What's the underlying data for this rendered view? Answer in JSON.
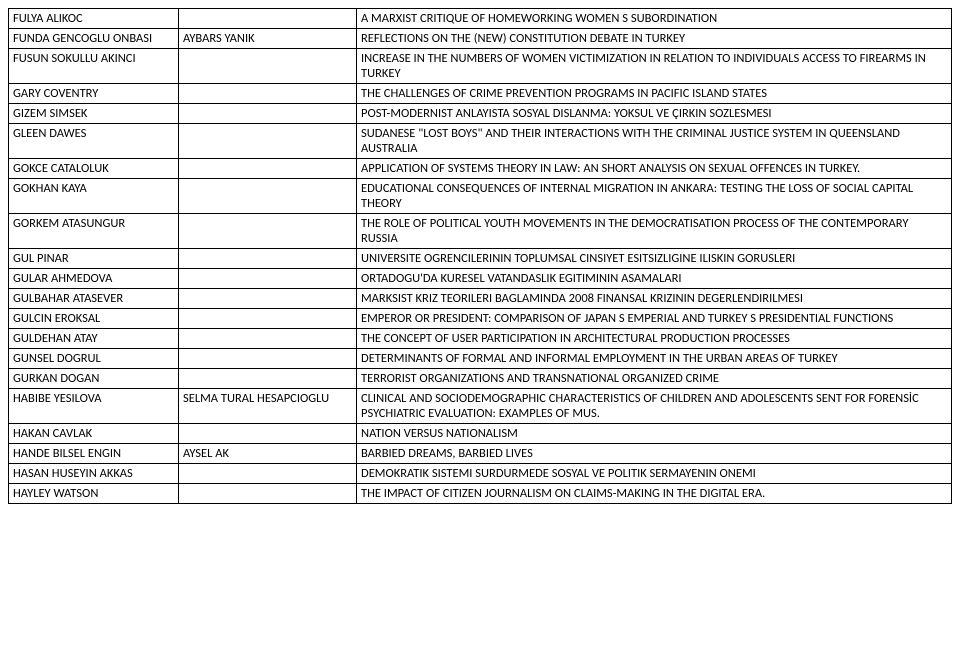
{
  "rows": [
    {
      "c1": "FULYA ALIKOC",
      "c2": "",
      "c3": "A MARXIST CRITIQUE OF HOMEWORKING WOMEN S SUBORDINATION"
    },
    {
      "c1": "FUNDA GENCOGLU ONBASI",
      "c2": "AYBARS YANIK",
      "c3": "REFLECTIONS ON THE (NEW) CONSTITUTION DEBATE IN TURKEY"
    },
    {
      "c1": "FUSUN SOKULLU AKINCI",
      "c2": "",
      "c3": "INCREASE IN THE NUMBERS OF WOMEN VICTIMIZATION IN RELATION TO INDIVIDUALS ACCESS TO FIREARMS IN TURKEY"
    },
    {
      "c1": "GARY COVENTRY",
      "c2": "",
      "c3": "THE CHALLENGES OF CRIME PREVENTION PROGRAMS IN PACIFIC ISLAND STATES"
    },
    {
      "c1": "GIZEM SIMSEK",
      "c2": "",
      "c3": "POST-MODERNIST ANLAYISTA SOSYAL DISLANMA: YOKSUL VE ÇIRKIN SOZLESMESI"
    },
    {
      "c1": "GLEEN DAWES",
      "c2": "",
      "c3": "SUDANESE \"LOST BOYS\" AND THEIR INTERACTIONS WITH THE CRIMINAL JUSTICE SYSTEM IN QUEENSLAND AUSTRALIA"
    },
    {
      "c1": "GOKCE CATALOLUK",
      "c2": "",
      "c3": "APPLICATION OF  SYSTEMS THEORY IN LAW: AN SHORT ANALYSIS ON  SEXUAL OFFENCES IN TURKEY."
    },
    {
      "c1": "GOKHAN KAYA",
      "c2": "",
      "c3": "EDUCATIONAL CONSEQUENCES OF INTERNAL MIGRATION IN ANKARA: TESTING THE LOSS OF SOCIAL CAPITAL THEORY"
    },
    {
      "c1": "GORKEM ATASUNGUR",
      "c2": "",
      "c3": "THE ROLE OF POLITICAL YOUTH MOVEMENTS IN THE DEMOCRATISATION PROCESS OF THE CONTEMPORARY RUSSIA"
    },
    {
      "c1": "GUL PINAR",
      "c2": "",
      "c3": "UNIVERSITE OGRENCILERININ TOPLUMSAL CINSIYET ESITSIZLIGINE ILISKIN GORUSLERI"
    },
    {
      "c1": "GULAR AHMEDOVA",
      "c2": "",
      "c3": "ORTADOGU'DA KURESEL VATANDASLIK EGITIMININ ASAMALARI"
    },
    {
      "c1": "GULBAHAR ATASEVER",
      "c2": "",
      "c3": "MARKSIST KRIZ TEORILERI BAGLAMINDA 2008 FINANSAL KRIZININ DEGERLENDIRILMESI"
    },
    {
      "c1": "GULCIN EROKSAL",
      "c2": "",
      "c3": "EMPEROR OR PRESIDENT: COMPARISON OF JAPAN S EMPERIAL AND TURKEY S PRESIDENTIAL FUNCTIONS"
    },
    {
      "c1": "GULDEHAN ATAY",
      "c2": "",
      "c3": "THE CONCEPT OF USER PARTICIPATION IN ARCHITECTURAL PRODUCTION PROCESSES"
    },
    {
      "c1": "GUNSEL DOGRUL",
      "c2": "",
      "c3": "DETERMINANTS OF FORMAL AND INFORMAL EMPLOYMENT IN THE URBAN AREAS OF TURKEY"
    },
    {
      "c1": "GURKAN DOGAN",
      "c2": "",
      "c3": "TERRORIST ORGANIZATIONS AND TRANSNATIONAL ORGANIZED CRIME"
    },
    {
      "c1": "HABIBE YESILOVA",
      "c2": "SELMA TURAL HESAPCIOGLU",
      "c3": "CLINICAL AND SOCIODEMOGRAPHIC CHARACTERISTICS OF CHILDREN AND ADOLESCENTS SENT FOR FORENSİC PSYCHIATRIC EVALUATION: EXAMPLES OF MUS."
    },
    {
      "c1": "HAKAN CAVLAK",
      "c2": "",
      "c3": "NATION VERSUS NATIONALISM"
    },
    {
      "c1": "HANDE BILSEL ENGIN",
      "c2": "AYSEL AK",
      "c3": "BARBIED DREAMS, BARBIED LIVES"
    },
    {
      "c1": "HASAN HUSEYIN AKKAS",
      "c2": "",
      "c3": "DEMOKRATIK SISTEMI SURDURMEDE SOSYAL VE POLITIK SERMAYENIN ONEMI"
    },
    {
      "c1": "HAYLEY WATSON",
      "c2": "",
      "c3": "THE IMPACT OF CITIZEN JOURNALISM ON CLAIMS-MAKING IN THE DIGITAL ERA."
    }
  ]
}
